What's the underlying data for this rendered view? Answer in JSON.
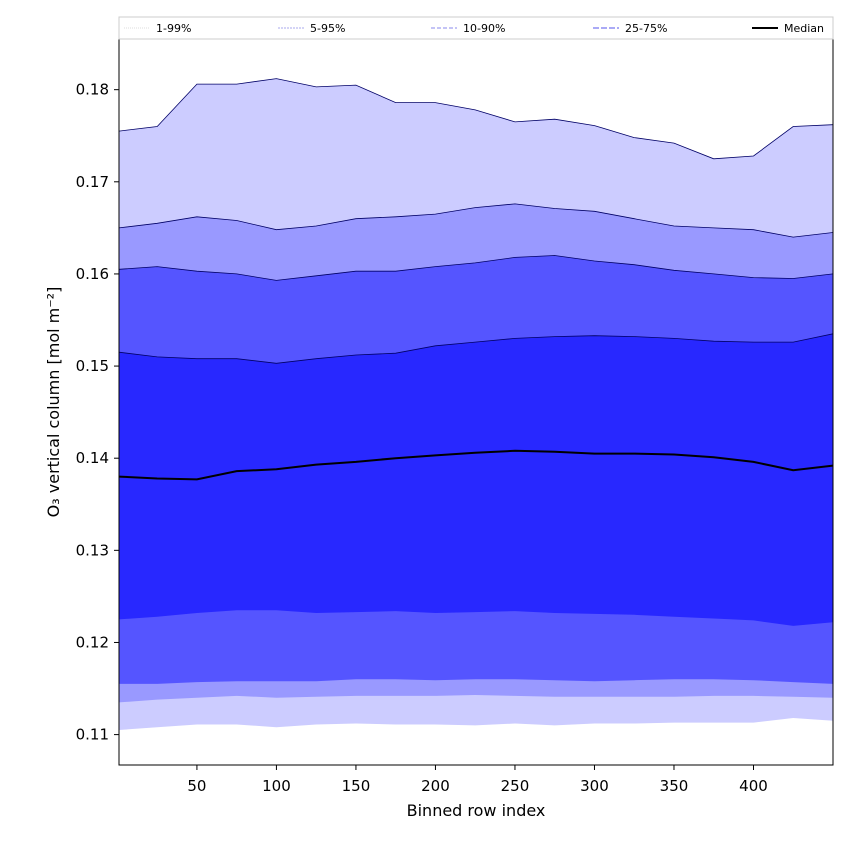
{
  "chart_data": {
    "type": "area",
    "xlabel": "Binned row index",
    "ylabel": "O₃ vertical column [mol m⁻²]",
    "xlim": [
      1,
      450
    ],
    "ylim": [
      0.1067,
      0.1855
    ],
    "xticks": [
      50,
      100,
      150,
      200,
      250,
      300,
      350,
      400
    ],
    "yticks": [
      0.11,
      0.12,
      0.13,
      0.14,
      0.15,
      0.16,
      0.17,
      0.18
    ],
    "ytick_labels": [
      "0.11",
      "0.12",
      "0.13",
      "0.14",
      "0.15",
      "0.16",
      "0.17",
      "0.18"
    ],
    "legend_position": "top, above plot, single row",
    "x": [
      1,
      25,
      50,
      75,
      100,
      125,
      150,
      175,
      200,
      225,
      250,
      275,
      300,
      325,
      350,
      375,
      400,
      425,
      450
    ],
    "bands": [
      {
        "name": "1-99%",
        "color": "#ccccff",
        "lower": [
          0.1105,
          0.1108,
          0.1111,
          0.1111,
          0.1108,
          0.1111,
          0.1112,
          0.1111,
          0.1111,
          0.111,
          0.1112,
          0.111,
          0.1112,
          0.1112,
          0.1113,
          0.1113,
          0.1113,
          0.1118,
          0.1115
        ],
        "upper": [
          0.1755,
          0.176,
          0.1806,
          0.1806,
          0.1812,
          0.1803,
          0.1805,
          0.1786,
          0.1786,
          0.1778,
          0.1765,
          0.1768,
          0.1761,
          0.1748,
          0.1742,
          0.1725,
          0.1728,
          0.176,
          0.1762
        ]
      },
      {
        "name": "5-95%",
        "color": "#9999ff",
        "lower": [
          0.1135,
          0.1138,
          0.114,
          0.1142,
          0.114,
          0.1141,
          0.1142,
          0.1142,
          0.1142,
          0.1143,
          0.1142,
          0.1141,
          0.1141,
          0.1141,
          0.1141,
          0.1142,
          0.1142,
          0.1141,
          0.114
        ],
        "upper": [
          0.165,
          0.1655,
          0.1662,
          0.1658,
          0.1648,
          0.1652,
          0.166,
          0.1662,
          0.1665,
          0.1672,
          0.1676,
          0.1671,
          0.1668,
          0.166,
          0.1652,
          0.165,
          0.1648,
          0.164,
          0.1645
        ]
      },
      {
        "name": "10-90%",
        "color": "#5555ff",
        "lower": [
          0.1155,
          0.1155,
          0.1157,
          0.1158,
          0.1158,
          0.1158,
          0.116,
          0.116,
          0.1159,
          0.116,
          0.116,
          0.1159,
          0.1158,
          0.1159,
          0.116,
          0.116,
          0.1159,
          0.1157,
          0.1155
        ],
        "upper": [
          0.1605,
          0.1608,
          0.1603,
          0.16,
          0.1593,
          0.1598,
          0.1603,
          0.1603,
          0.1608,
          0.1612,
          0.1618,
          0.162,
          0.1614,
          0.161,
          0.1604,
          0.16,
          0.1596,
          0.1595,
          0.16
        ]
      },
      {
        "name": "25-75%",
        "color": "#2828ff",
        "lower": [
          0.1225,
          0.1228,
          0.1232,
          0.1235,
          0.1235,
          0.1232,
          0.1233,
          0.1234,
          0.1232,
          0.1233,
          0.1234,
          0.1232,
          0.1231,
          0.123,
          0.1228,
          0.1226,
          0.1224,
          0.1218,
          0.1222
        ],
        "upper": [
          0.1515,
          0.151,
          0.1508,
          0.1508,
          0.1503,
          0.1508,
          0.1512,
          0.1514,
          0.1522,
          0.1526,
          0.153,
          0.1532,
          0.1533,
          0.1532,
          0.153,
          0.1527,
          0.1526,
          0.1526,
          0.1535
        ]
      }
    ],
    "median": {
      "name": "Median",
      "color": "#000000",
      "values": [
        0.138,
        0.1378,
        0.1377,
        0.1386,
        0.1388,
        0.1393,
        0.1396,
        0.14,
        0.1403,
        0.1406,
        0.1408,
        0.1407,
        0.1405,
        0.1405,
        0.1404,
        0.1401,
        0.1396,
        0.1387,
        0.1392
      ]
    },
    "legend": [
      {
        "label": "1-99%",
        "color": "#dddddd",
        "dash": "1,1"
      },
      {
        "label": "5-95%",
        "color": "#aaaaee",
        "dash": "2,1"
      },
      {
        "label": "10-90%",
        "color": "#8888ee",
        "dash": "4,2"
      },
      {
        "label": "25-75%",
        "color": "#5555ee",
        "dash": "6,2"
      },
      {
        "label": "Median",
        "color": "#000000",
        "dash": ""
      }
    ]
  }
}
